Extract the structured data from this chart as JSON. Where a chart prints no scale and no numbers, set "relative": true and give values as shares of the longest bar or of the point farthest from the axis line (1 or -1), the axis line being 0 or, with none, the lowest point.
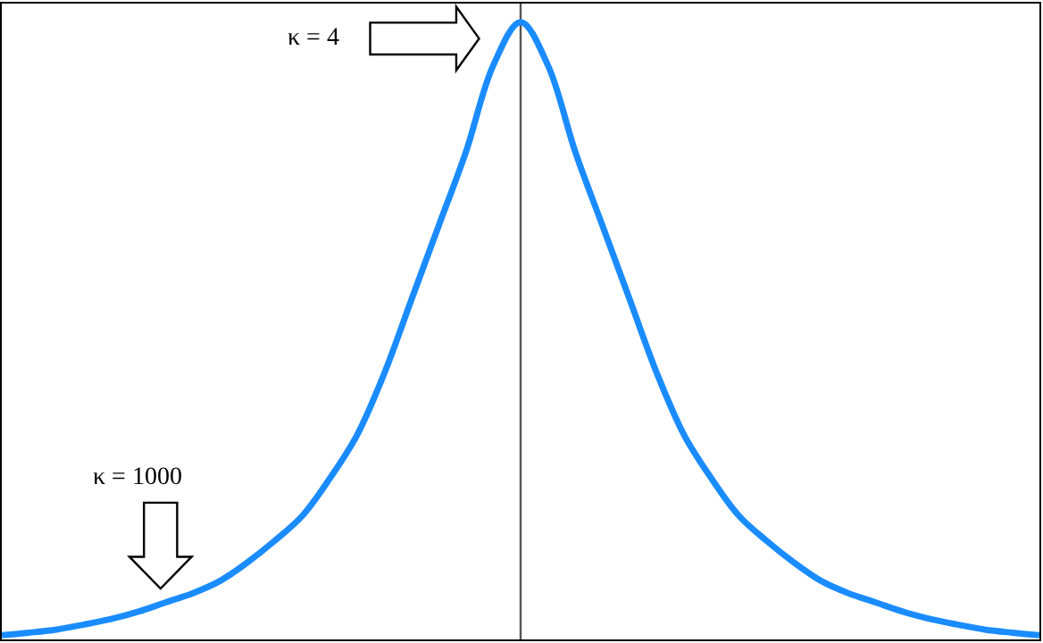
{
  "chart_data": {
    "type": "line",
    "relative": true,
    "categories": [
      null,
      null,
      null,
      null,
      null,
      null,
      null,
      null,
      null,
      null,
      null,
      null,
      null,
      null,
      null,
      null,
      null,
      null,
      null,
      null,
      null,
      null,
      null,
      null,
      null,
      null,
      null,
      null,
      null,
      null,
      null,
      null,
      null,
      null,
      null,
      null,
      null,
      null,
      null
    ],
    "series": [
      {
        "color": "#1a8cff",
        "values": [
          0.007,
          0.011,
          0.016,
          0.024,
          0.033,
          0.045,
          0.06,
          0.075,
          0.095,
          0.125,
          0.16,
          0.2,
          0.26,
          0.33,
          0.43,
          0.55,
          0.67,
          0.79,
          0.93,
          1.0,
          0.93,
          0.79,
          0.67,
          0.55,
          0.43,
          0.33,
          0.26,
          0.2,
          0.16,
          0.125,
          0.095,
          0.075,
          0.06,
          0.045,
          0.033,
          0.024,
          0.016,
          0.011,
          0.007
        ]
      }
    ],
    "annotations": [
      "κ = 4",
      "κ = 1000"
    ],
    "grid": false,
    "legend": false,
    "marker": "none",
    "line_style": "solid"
  }
}
